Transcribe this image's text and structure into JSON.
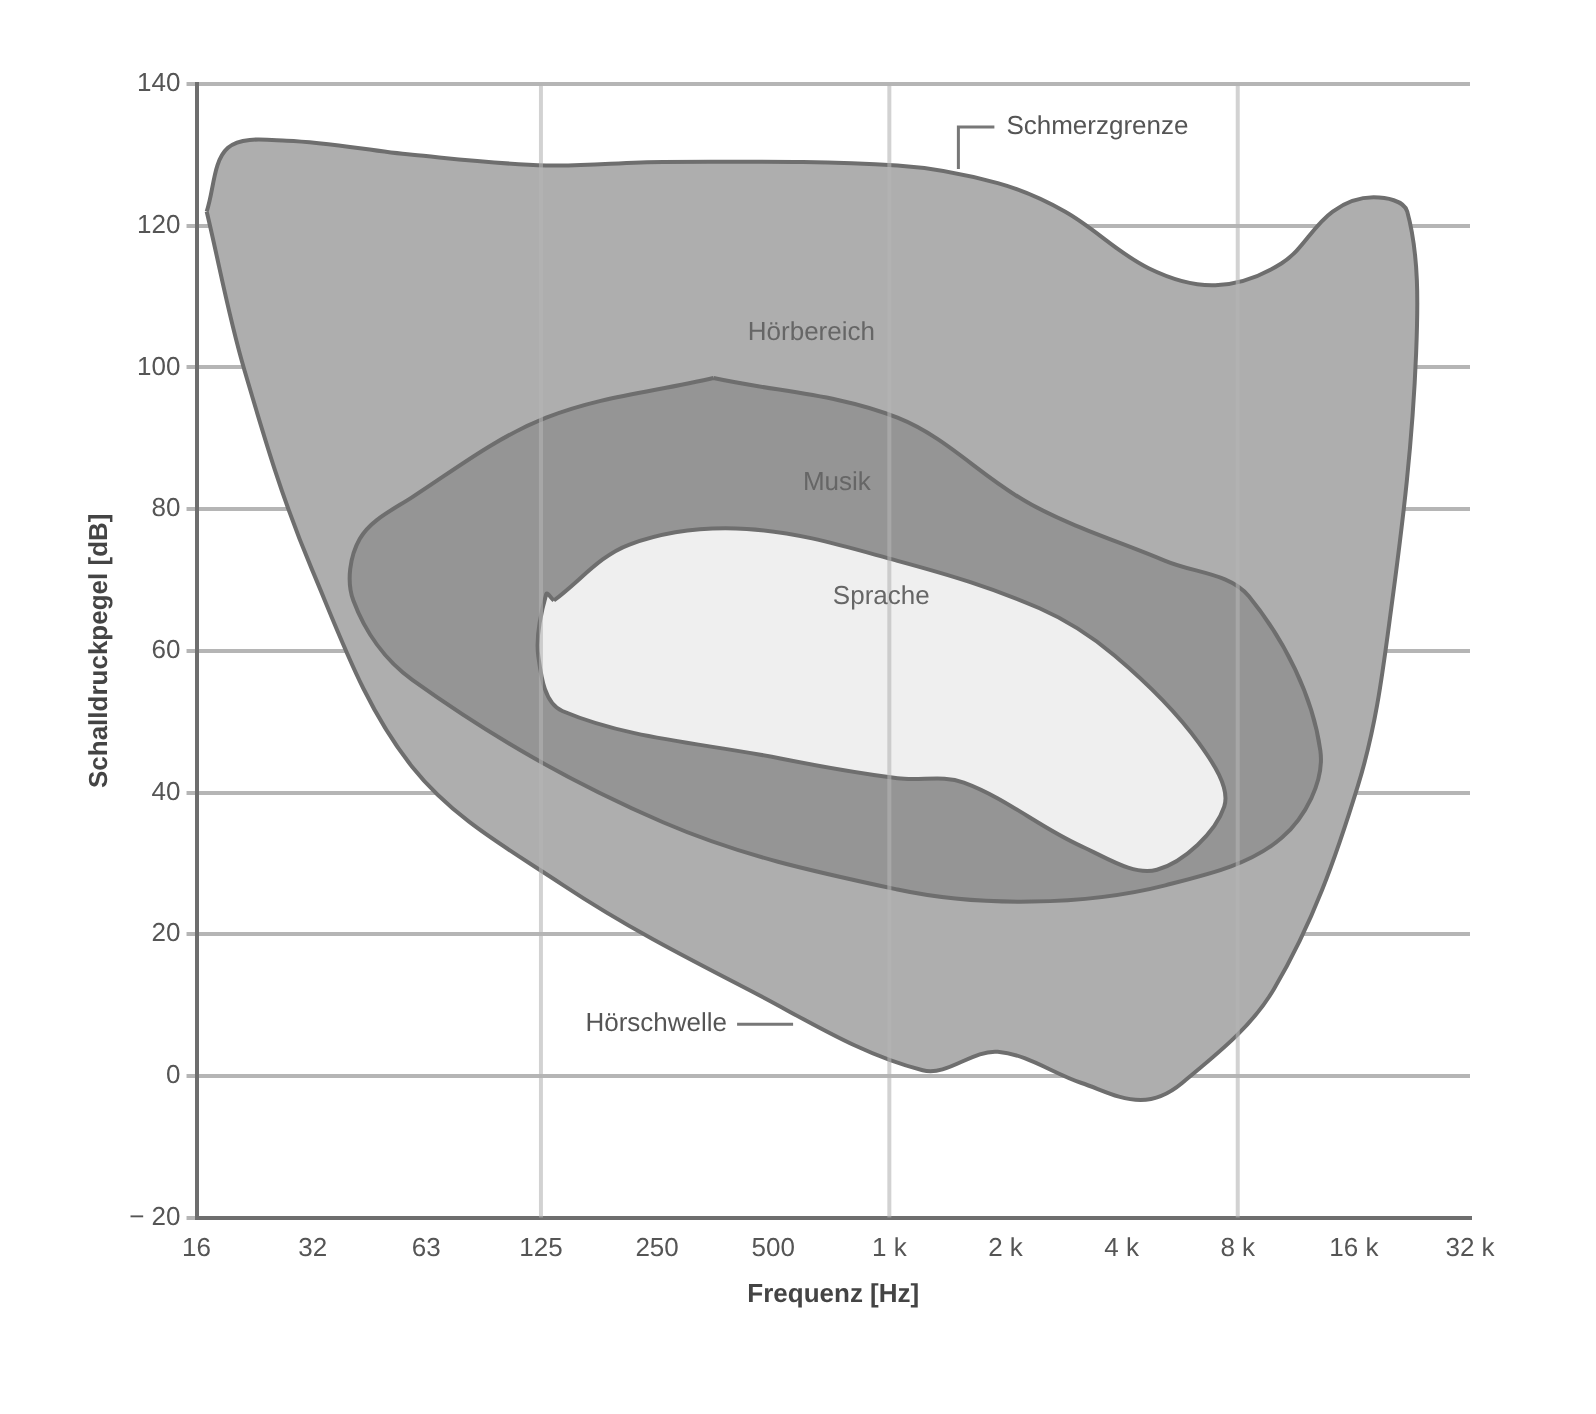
{
  "chart_data": {
    "type": "area",
    "xlabel": "Frequenz [Hz]",
    "ylabel": "Schalldruckpegel [dB]",
    "log": "x",
    "xlim": [
      16,
      32000
    ],
    "xticks": [
      16,
      32,
      63,
      125,
      250,
      500,
      {
        "value": 1000,
        "label": "1 k"
      },
      {
        "value": 2000,
        "label": "2 k"
      },
      {
        "value": 4000,
        "label": "4 k"
      },
      {
        "value": 8000,
        "label": "8 k"
      },
      {
        "value": 16000,
        "label": "16 k"
      },
      {
        "value": 32000,
        "label": "32 k"
      }
    ],
    "ylim": [
      -20,
      140
    ],
    "yticks": [
      {
        "value": -20,
        "label": "− 20"
      },
      0,
      20,
      40,
      60,
      80,
      100,
      120,
      140
    ],
    "grid": "y",
    "ref_lines": [
      {
        "axis": "x",
        "value": 125,
        "color": "#b4b4b4"
      },
      {
        "axis": "x",
        "value": 1000,
        "color": "#b4b4b4"
      },
      {
        "axis": "x",
        "value": 8000,
        "color": "#b4b4b4"
      }
    ],
    "series": [
      {
        "name": "Hörbereich",
        "color": "#aeaeae",
        "x": [
          17,
          19.3,
          27.4,
          58,
          129,
          259,
          1050,
          1910,
          2850,
          4700,
          7000,
          10400,
          14100,
          18000,
          22000,
          23200,
          20000,
          16400,
          9940,
          5740,
          4480,
          3150,
          1910,
          1220,
          427,
          142,
          58,
          31.8,
          21.3
        ],
        "values": [
          122,
          131,
          132,
          130,
          128.5,
          129,
          128.5,
          126,
          122,
          114,
          111.6,
          114.7,
          122,
          124,
          122,
          102,
          66,
          41,
          12.3,
          -1,
          -3.4,
          -1,
          3.4,
          0.8,
          12.3,
          27,
          43.6,
          71.6,
          99.6
        ]
      },
      {
        "name": "Musik",
        "color": "#959595",
        "x": [
          350,
          1050,
          2340,
          5190,
          8550,
          13100,
          10400,
          5190,
          2340,
          1050,
          259,
          58,
          40.8,
          42.4,
          58,
          129
        ],
        "values": [
          98.5,
          92.9,
          80.6,
          72.7,
          67.7,
          45.9,
          33.6,
          26.9,
          24.6,
          26.3,
          35.8,
          55.9,
          67.1,
          75.8,
          81.7,
          92.9
        ]
      },
      {
        "name": "Sprache",
        "color": "#efefef",
        "x": [
          135,
          212,
          427,
          1050,
          2450,
          3840,
          6340,
          7380,
          4940,
          3150,
          1560,
          1050,
          522,
          142,
          123,
          129
        ],
        "values": [
          67.1,
          75,
          77.2,
          72.7,
          66,
          59.3,
          47,
          38,
          29.1,
          32.4,
          41.4,
          42,
          44.8,
          51.5,
          59.3,
          68
        ]
      }
    ],
    "annotations": [
      {
        "text": "Schmerzgrenze",
        "x": 1510,
        "y": 128
      },
      {
        "text": "Hörschwelle",
        "x": 563,
        "y": 7.3
      }
    ]
  }
}
